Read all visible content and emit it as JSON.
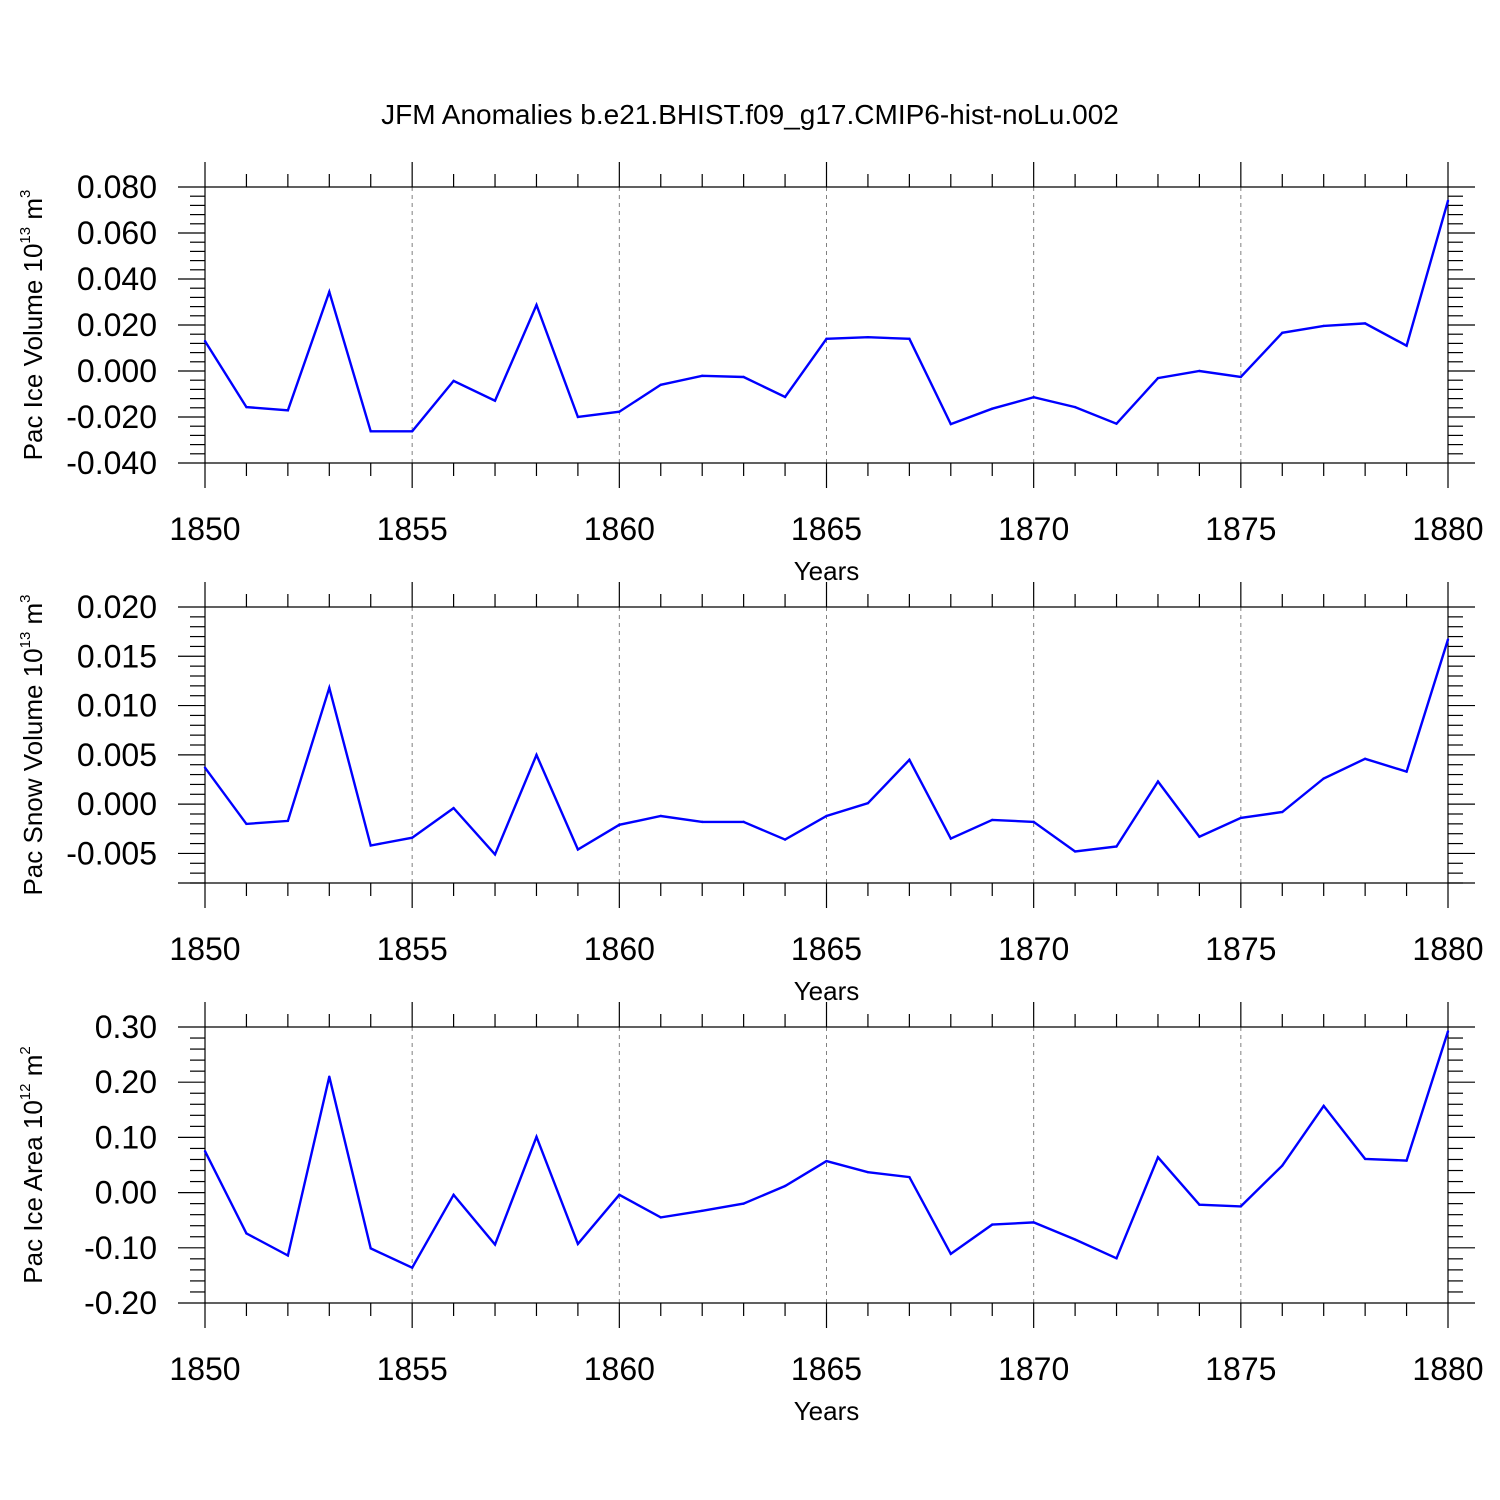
{
  "title": "JFM Anomalies b.e21.BHIST.f09_g17.CMIP6-hist-noLu.002",
  "colors": {
    "line": "#0000ff",
    "axis": "#000000",
    "grid": "#808080"
  },
  "chart_data": [
    {
      "type": "line",
      "xlabel": "Years",
      "ylabel": {
        "text": "Pac Ice Volume 10",
        "exponent": "13",
        "unit": " m",
        "unit_exponent": "3"
      },
      "xlim": [
        1850,
        1880
      ],
      "ylim": [
        -0.04,
        0.08
      ],
      "ytick_major": [
        -0.04,
        -0.02,
        0.0,
        0.02,
        0.04,
        0.06,
        0.08
      ],
      "ytick_labels": [
        "-0.040",
        "-0.020",
        "0.000",
        "0.020",
        "0.040",
        "0.060",
        "0.080"
      ],
      "ytick_minor_step": 0.004,
      "xtick_major": [
        1850,
        1855,
        1860,
        1865,
        1870,
        1875,
        1880
      ],
      "xtick_labels": [
        "1850",
        "1855",
        "1860",
        "1865",
        "1870",
        "1875",
        "1880"
      ],
      "x": [
        1850,
        1851,
        1852,
        1853,
        1854,
        1855,
        1856,
        1857,
        1858,
        1859,
        1860,
        1861,
        1862,
        1863,
        1864,
        1865,
        1866,
        1867,
        1868,
        1869,
        1870,
        1871,
        1872,
        1873,
        1874,
        1875,
        1876,
        1877,
        1878,
        1879,
        1880
      ],
      "values": [
        0.013,
        -0.0157,
        -0.0171,
        0.0344,
        -0.0262,
        -0.0262,
        -0.0043,
        -0.0129,
        0.0287,
        -0.02,
        -0.0177,
        -0.006,
        -0.0021,
        -0.0026,
        -0.0113,
        0.014,
        0.0147,
        0.014,
        -0.0231,
        -0.0164,
        -0.0114,
        -0.0157,
        -0.0229,
        -0.0031,
        0.0,
        -0.0026,
        0.0166,
        0.0196,
        0.0207,
        0.011,
        0.074
      ]
    },
    {
      "type": "line",
      "xlabel": "Years",
      "ylabel": {
        "text": "Pac Snow Volume 10",
        "exponent": "13",
        "unit": " m",
        "unit_exponent": "3"
      },
      "xlim": [
        1850,
        1880
      ],
      "ylim": [
        -0.008,
        0.02
      ],
      "ytick_major": [
        -0.005,
        0.0,
        0.005,
        0.01,
        0.015,
        0.02
      ],
      "ytick_labels": [
        "-0.005",
        "0.000",
        "0.005",
        "0.010",
        "0.015",
        "0.020"
      ],
      "ytick_minor_step": 0.001,
      "xtick_major": [
        1850,
        1855,
        1860,
        1865,
        1870,
        1875,
        1880
      ],
      "xtick_labels": [
        "1850",
        "1855",
        "1860",
        "1865",
        "1870",
        "1875",
        "1880"
      ],
      "x": [
        1850,
        1851,
        1852,
        1853,
        1854,
        1855,
        1856,
        1857,
        1858,
        1859,
        1860,
        1861,
        1862,
        1863,
        1864,
        1865,
        1866,
        1867,
        1868,
        1869,
        1870,
        1871,
        1872,
        1873,
        1874,
        1875,
        1876,
        1877,
        1878,
        1879,
        1880
      ],
      "values": [
        0.0037,
        -0.002,
        -0.0017,
        0.0118,
        -0.0042,
        -0.0034,
        -0.0004,
        -0.0051,
        0.005,
        -0.0046,
        -0.0021,
        -0.0012,
        -0.0018,
        -0.0018,
        -0.0036,
        -0.0012,
        0.0001,
        0.0045,
        -0.0035,
        -0.0016,
        -0.0018,
        -0.0048,
        -0.0043,
        0.0023,
        -0.0033,
        -0.0014,
        -0.0008,
        0.0026,
        0.0046,
        0.0033,
        0.0167
      ]
    },
    {
      "type": "line",
      "xlabel": "Years",
      "ylabel": {
        "text": "Pac Ice Area 10",
        "exponent": "12",
        "unit": " m",
        "unit_exponent": "2"
      },
      "xlim": [
        1850,
        1880
      ],
      "ylim": [
        -0.2,
        0.3
      ],
      "ytick_major": [
        -0.2,
        -0.1,
        0.0,
        0.1,
        0.2,
        0.3
      ],
      "ytick_labels": [
        "-0.20",
        "-0.10",
        "0.00",
        "0.10",
        "0.20",
        "0.30"
      ],
      "ytick_minor_step": 0.02,
      "xtick_major": [
        1850,
        1855,
        1860,
        1865,
        1870,
        1875,
        1880
      ],
      "xtick_labels": [
        "1850",
        "1855",
        "1860",
        "1865",
        "1870",
        "1875",
        "1880"
      ],
      "x": [
        1850,
        1851,
        1852,
        1853,
        1854,
        1855,
        1856,
        1857,
        1858,
        1859,
        1860,
        1861,
        1862,
        1863,
        1864,
        1865,
        1866,
        1867,
        1868,
        1869,
        1870,
        1871,
        1872,
        1873,
        1874,
        1875,
        1876,
        1877,
        1878,
        1879,
        1880
      ],
      "values": [
        0.075,
        -0.074,
        -0.114,
        0.21,
        -0.101,
        -0.136,
        -0.004,
        -0.094,
        0.101,
        -0.093,
        -0.004,
        -0.045,
        -0.033,
        -0.02,
        0.012,
        0.057,
        0.037,
        0.028,
        -0.111,
        -0.058,
        -0.054,
        -0.085,
        -0.119,
        0.064,
        -0.022,
        -0.025,
        0.049,
        0.157,
        0.061,
        0.058,
        0.292
      ]
    }
  ]
}
